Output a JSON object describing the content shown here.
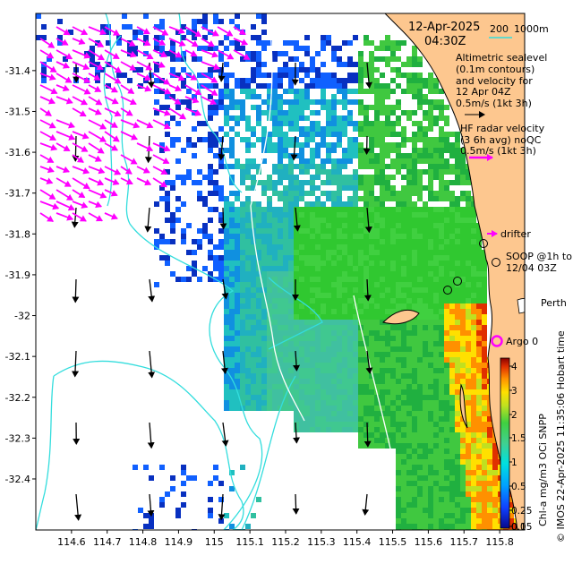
{
  "header": {
    "date": "12-Apr-2025",
    "time": "04:30Z",
    "scale_200": "200",
    "scale_1000": "1000m"
  },
  "legend": {
    "altimetric_line1": "Altimetric sealevel",
    "altimetric_line2": "(0.1m contours)",
    "altimetric_line3": "and velocity for",
    "altimetric_line4": "12 Apr 04Z",
    "altimetric_line5": "0.5m/s (1kt 3h)",
    "hf_line1": "HF radar velocity",
    "hf_line2": "(3 6h avg) noQC",
    "hf_line3": "0.5m/s (1kt 3h)",
    "drifter": "drifter",
    "soop_line1": "SOOP @1h to",
    "soop_line2": "12/04 03Z",
    "perth": "Perth",
    "argo": "Argo 0"
  },
  "colorbar": {
    "title": "Chl-a mg/m3 OCi SNPP",
    "ticks": [
      "4",
      "3",
      "2",
      "1.5",
      "1",
      "0.5",
      "0.25",
      "0.1",
      "0.05"
    ]
  },
  "credit": "© IMOS 22-Apr-2025 11:35:06 Hobart time",
  "axes": {
    "x_ticks": [
      "114.6",
      "114.7",
      "114.8",
      "114.9",
      "115",
      "115.1",
      "115.2",
      "115.3",
      "115.4",
      "115.5",
      "115.6",
      "115.7",
      "115.8"
    ],
    "y_ticks": [
      "-31.4",
      "-31.5",
      "-31.6",
      "-31.7",
      "-31.8",
      "-31.9",
      "-32",
      "-32.1",
      "-32.2",
      "-32.3",
      "-32.4"
    ],
    "x_range": [
      114.5,
      115.87
    ],
    "y_range": [
      -32.525,
      -31.26
    ]
  },
  "colors": {
    "land": "#fdc78f",
    "bathy": "#33dddd",
    "hf_arrow": "#ff00ff",
    "alt_arrow": "#000000"
  }
}
